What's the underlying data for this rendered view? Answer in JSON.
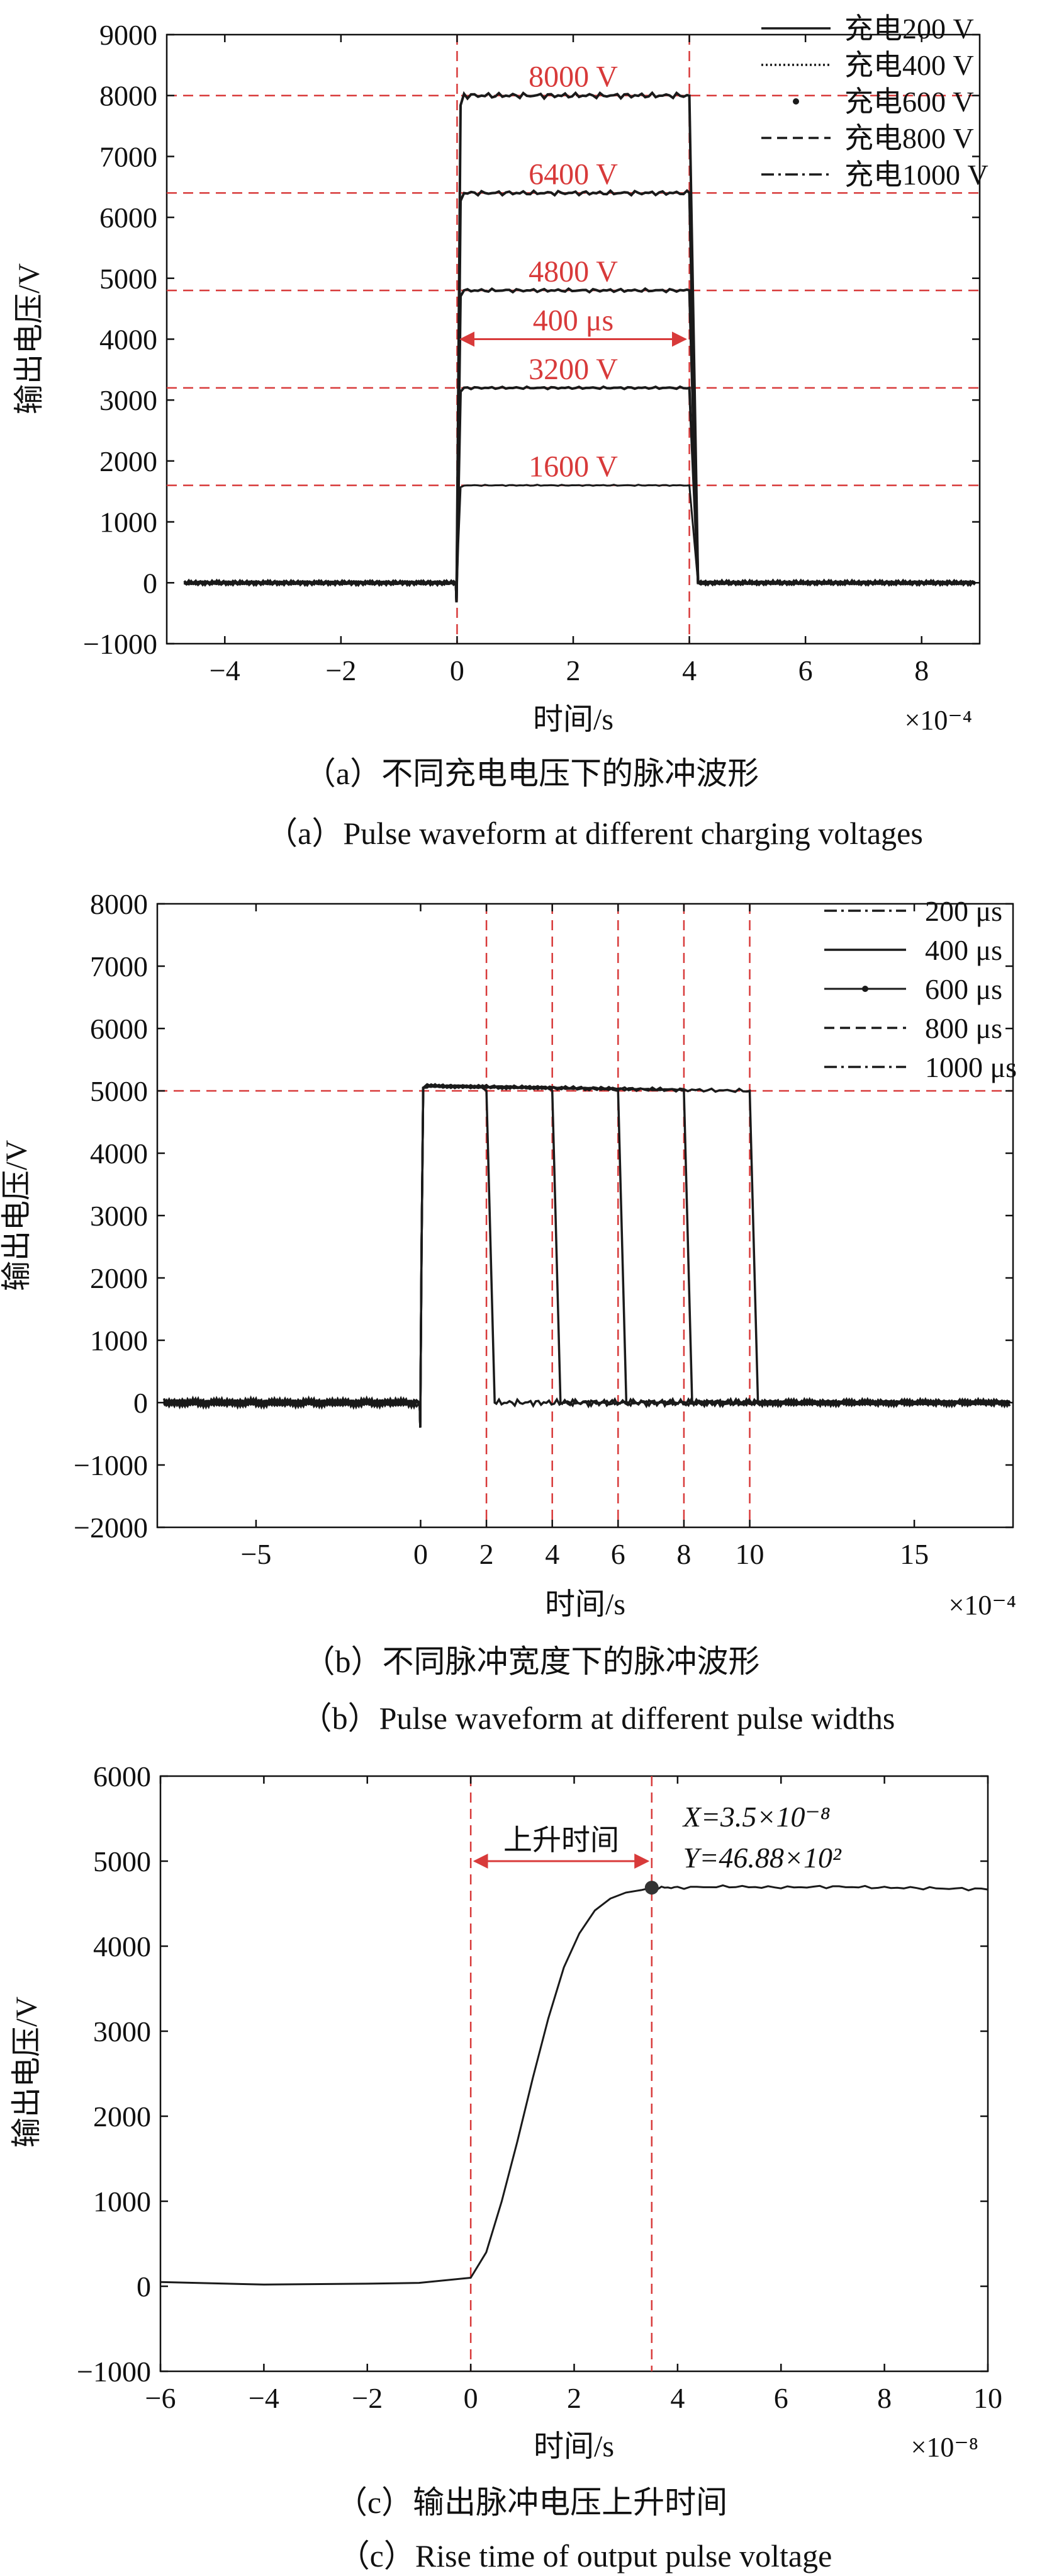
{
  "chart_data": [
    {
      "type": "line",
      "xlabel": "时间/s",
      "ylabel": "输出电压/V",
      "x_multiplier": "×10⁻⁴",
      "xlim": [
        -5,
        9
      ],
      "ylim": [
        -1000,
        9000
      ],
      "xticks": [
        "−4",
        "−2",
        "0",
        "2",
        "4",
        "6",
        "8"
      ],
      "yticks": [
        "−1000",
        "0",
        "1000",
        "2000",
        "3000",
        "4000",
        "5000",
        "6000",
        "7000",
        "8000",
        "9000"
      ],
      "legend_position": "top-right",
      "pulse_width": 4,
      "series": [
        {
          "name": "充电200 V",
          "style": "solid",
          "level": 1600
        },
        {
          "name": "充电400 V",
          "style": "dotted",
          "level": 3200
        },
        {
          "name": "充电600 V",
          "style": "point",
          "level": 4800
        },
        {
          "name": "充电800 V",
          "style": "dashed",
          "level": 6400
        },
        {
          "name": "充电1000 V",
          "style": "dashdot",
          "level": 8000
        }
      ],
      "hlines": [
        {
          "y": 8000,
          "label": "8000 V"
        },
        {
          "y": 6400,
          "label": "6400 V"
        },
        {
          "y": 4800,
          "label": "4800 V"
        },
        {
          "y": 3200,
          "label": "3200 V"
        },
        {
          "y": 1600,
          "label": "1600 V"
        }
      ],
      "vlines": [
        0,
        4
      ],
      "arrow_annotation": {
        "from": 0,
        "to": 4,
        "y": 4000,
        "label": "400 μs"
      },
      "caption_cn": "（a）不同充电电压下的脉冲波形",
      "caption_en": "（a）Pulse waveform at different charging voltages",
      "colors": {
        "reference": "#d83a3a",
        "trace": "#1a1a1a"
      }
    },
    {
      "type": "line",
      "xlabel": "时间/s",
      "ylabel": "输出电压/V",
      "x_multiplier": "×10⁻⁴",
      "xlim": [
        -8,
        18
      ],
      "ylim": [
        -2000,
        8000
      ],
      "xticks": [
        "−5",
        "0",
        "2",
        "4",
        "6",
        "8",
        "10",
        "15"
      ],
      "xtick_values": [
        -5,
        0,
        2,
        4,
        6,
        8,
        10,
        15
      ],
      "yticks": [
        "−2000",
        "−1000",
        "0",
        "1000",
        "2000",
        "3000",
        "4000",
        "5000",
        "6000",
        "7000",
        "8000"
      ],
      "legend_position": "top-right",
      "level": 5000,
      "series": [
        {
          "name": "200 μs",
          "style": "dashdot",
          "width": 2
        },
        {
          "name": "400 μs",
          "style": "solid",
          "width": 4
        },
        {
          "name": "600 μs",
          "style": "point",
          "width": 6
        },
        {
          "name": "800 μs",
          "style": "dashed",
          "width": 8
        },
        {
          "name": "1000 μs",
          "style": "dashdot",
          "width": 10
        }
      ],
      "hlines": [
        {
          "y": 5000
        }
      ],
      "vlines": [
        2,
        4,
        6,
        8,
        10
      ],
      "caption_cn": "（b）不同脉冲宽度下的脉冲波形",
      "caption_en": "（b）Pulse waveform at different pulse widths"
    },
    {
      "type": "line",
      "xlabel": "时间/s",
      "ylabel": "输出电压/V",
      "x_multiplier": "×10⁻⁸",
      "xlim": [
        -6,
        10
      ],
      "ylim": [
        -1000,
        6000
      ],
      "xticks": [
        "−6",
        "−4",
        "−2",
        "0",
        "2",
        "4",
        "6",
        "8",
        "10"
      ],
      "yticks": [
        "−1000",
        "0",
        "1000",
        "2000",
        "3000",
        "4000",
        "5000",
        "6000"
      ],
      "series": [
        {
          "name": "rise",
          "x": [
            -6,
            -4,
            -2,
            -1,
            0,
            0.3,
            0.6,
            0.9,
            1.2,
            1.5,
            1.8,
            2.1,
            2.4,
            2.7,
            3.0,
            3.3,
            3.5,
            4,
            5,
            6,
            7,
            8,
            9,
            10
          ],
          "y": [
            50,
            20,
            30,
            40,
            100,
            400,
            1000,
            1700,
            2450,
            3150,
            3750,
            4150,
            4420,
            4560,
            4630,
            4660,
            4688,
            4690,
            4700,
            4690,
            4700,
            4690,
            4680,
            4670
          ]
        }
      ],
      "vlines": [
        0,
        3.5
      ],
      "marker": {
        "x": 3.5,
        "y": 4688
      },
      "arrow_annotation": {
        "from": 0,
        "to": 3.5,
        "label": "上升时间"
      },
      "point_label_x": "X=3.5×10⁻⁸",
      "point_label_y": "Y=46.88×10²",
      "caption_cn": "（c）输出脉冲电压上升时间",
      "caption_en": "（c）Rise time of output pulse voltage"
    }
  ]
}
